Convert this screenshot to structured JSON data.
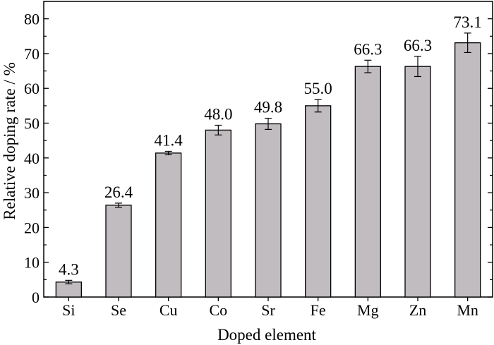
{
  "chart_data": {
    "type": "bar",
    "xlabel": "Doped element",
    "ylabel": "Relative doping rate / %",
    "categories": [
      "Si",
      "Se",
      "Cu",
      "Co",
      "Sr",
      "Fe",
      "Mg",
      "Zn",
      "Mn"
    ],
    "series": [
      {
        "values": [
          4.3,
          26.4,
          41.4,
          48.0,
          49.8,
          55.0,
          66.3,
          66.3,
          73.1
        ],
        "value_labels": [
          "4.3",
          "26.4",
          "41.4",
          "48.0",
          "49.8",
          "55.0",
          "66.3",
          "66.3",
          "73.1"
        ],
        "errors": [
          0.5,
          0.6,
          0.5,
          1.4,
          1.6,
          1.8,
          1.8,
          2.9,
          2.8
        ]
      }
    ],
    "ylim": [
      0,
      85
    ],
    "yticks": [
      "0",
      "10",
      "20",
      "30",
      "40",
      "50",
      "60",
      "70",
      "80"
    ],
    "bar_color": "#c0bcc0",
    "grid": false,
    "legend": "none"
  }
}
